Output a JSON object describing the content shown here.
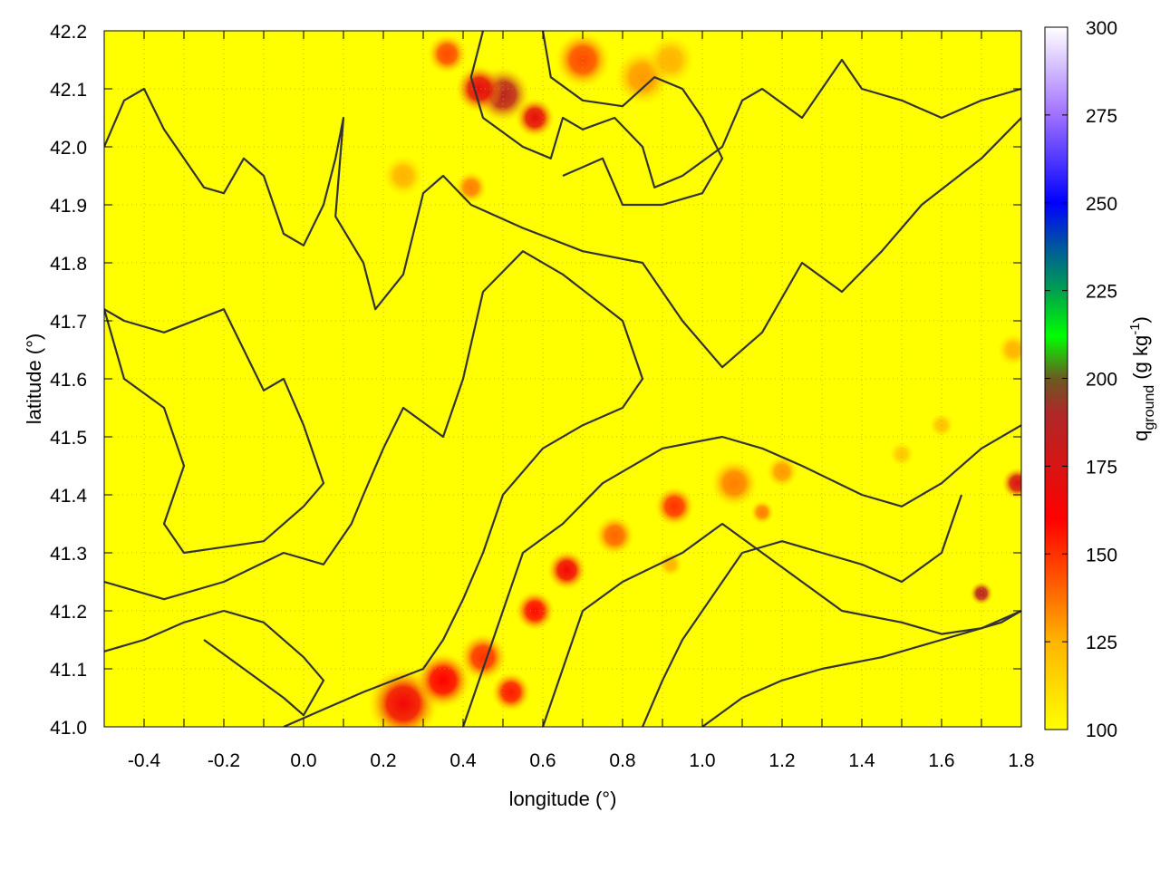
{
  "chart_data": {
    "type": "heatmap",
    "title": "",
    "xlabel": "longitude (°)",
    "ylabel": "latitude (°)",
    "colorbar_label": {
      "base": "q",
      "subscript": "ground",
      "unit_prefix": " (g kg",
      "superscript": "-1",
      "unit_suffix": ")"
    },
    "xlim": [
      -0.5,
      1.8
    ],
    "ylim": [
      41.0,
      42.2
    ],
    "clim": [
      100,
      300
    ],
    "xticks": [
      "-0.4",
      "-0.2",
      "0.0",
      "0.2",
      "0.4",
      "0.6",
      "0.8",
      "1.0",
      "1.2",
      "1.4",
      "1.6",
      "1.8"
    ],
    "xtick_values": [
      -0.4,
      -0.2,
      0.0,
      0.2,
      0.4,
      0.6,
      0.8,
      1.0,
      1.2,
      1.4,
      1.6,
      1.8
    ],
    "yticks": [
      "41.0",
      "41.1",
      "41.2",
      "41.3",
      "41.4",
      "41.5",
      "41.6",
      "41.7",
      "41.8",
      "41.9",
      "42.0",
      "42.1",
      "42.2"
    ],
    "ytick_values": [
      41.0,
      41.1,
      41.2,
      41.3,
      41.4,
      41.5,
      41.6,
      41.7,
      41.8,
      41.9,
      42.0,
      42.1,
      42.2
    ],
    "cbticks": [
      "100",
      "125",
      "150",
      "175",
      "200",
      "225",
      "250",
      "275",
      "300"
    ],
    "cbtick_values": [
      100,
      125,
      150,
      175,
      200,
      225,
      250,
      275,
      300
    ],
    "grid": true,
    "background_value": 100,
    "colormap": [
      {
        "value": 100,
        "color": "#ffff00"
      },
      {
        "value": 125,
        "color": "#ffb400"
      },
      {
        "value": 145,
        "color": "#ff4a00"
      },
      {
        "value": 160,
        "color": "#ff0000"
      },
      {
        "value": 175,
        "color": "#d81414"
      },
      {
        "value": 190,
        "color": "#ae2828"
      },
      {
        "value": 200,
        "color": "#6a5a22"
      },
      {
        "value": 212,
        "color": "#00ff00"
      },
      {
        "value": 225,
        "color": "#00a050"
      },
      {
        "value": 237,
        "color": "#005a9a"
      },
      {
        "value": 250,
        "color": "#0000ff"
      },
      {
        "value": 275,
        "color": "#a070ff"
      },
      {
        "value": 300,
        "color": "#ffffff"
      }
    ],
    "hotspots": [
      {
        "lon": 0.5,
        "lat": 42.09,
        "value": 185,
        "r": 0.07
      },
      {
        "lon": 0.44,
        "lat": 42.1,
        "value": 170,
        "r": 0.06
      },
      {
        "lon": 0.58,
        "lat": 42.05,
        "value": 170,
        "r": 0.05
      },
      {
        "lon": 0.36,
        "lat": 42.16,
        "value": 145,
        "r": 0.05
      },
      {
        "lon": 0.7,
        "lat": 42.15,
        "value": 145,
        "r": 0.07
      },
      {
        "lon": 0.85,
        "lat": 42.12,
        "value": 130,
        "r": 0.07
      },
      {
        "lon": 0.92,
        "lat": 42.15,
        "value": 125,
        "r": 0.06
      },
      {
        "lon": 0.25,
        "lat": 41.95,
        "value": 125,
        "r": 0.05
      },
      {
        "lon": 0.42,
        "lat": 41.93,
        "value": 135,
        "r": 0.04
      },
      {
        "lon": 0.25,
        "lat": 41.04,
        "value": 165,
        "r": 0.09
      },
      {
        "lon": 0.35,
        "lat": 41.08,
        "value": 160,
        "r": 0.07
      },
      {
        "lon": 0.45,
        "lat": 41.12,
        "value": 150,
        "r": 0.06
      },
      {
        "lon": 0.52,
        "lat": 41.06,
        "value": 155,
        "r": 0.05
      },
      {
        "lon": 0.58,
        "lat": 41.2,
        "value": 158,
        "r": 0.05
      },
      {
        "lon": 0.66,
        "lat": 41.27,
        "value": 165,
        "r": 0.05
      },
      {
        "lon": 0.78,
        "lat": 41.33,
        "value": 140,
        "r": 0.05
      },
      {
        "lon": 0.93,
        "lat": 41.38,
        "value": 150,
        "r": 0.05
      },
      {
        "lon": 1.08,
        "lat": 41.42,
        "value": 135,
        "r": 0.06
      },
      {
        "lon": 1.2,
        "lat": 41.44,
        "value": 130,
        "r": 0.04
      },
      {
        "lon": 1.15,
        "lat": 41.37,
        "value": 135,
        "r": 0.03
      },
      {
        "lon": 1.7,
        "lat": 41.23,
        "value": 185,
        "r": 0.03
      },
      {
        "lon": 1.79,
        "lat": 41.42,
        "value": 175,
        "r": 0.04
      },
      {
        "lon": 1.78,
        "lat": 41.65,
        "value": 125,
        "r": 0.04
      },
      {
        "lon": 1.6,
        "lat": 41.52,
        "value": 120,
        "r": 0.03
      },
      {
        "lon": 1.5,
        "lat": 41.47,
        "value": 118,
        "r": 0.03
      },
      {
        "lon": 0.92,
        "lat": 41.28,
        "value": 125,
        "r": 0.03
      }
    ],
    "contours": [
      [
        [
          -0.5,
          42.0
        ],
        [
          -0.45,
          42.08
        ],
        [
          -0.4,
          42.1
        ],
        [
          -0.35,
          42.03
        ],
        [
          -0.3,
          41.98
        ],
        [
          -0.25,
          41.93
        ],
        [
          -0.2,
          41.92
        ],
        [
          -0.15,
          41.98
        ],
        [
          -0.1,
          41.95
        ],
        [
          -0.05,
          41.85
        ],
        [
          0.0,
          41.83
        ],
        [
          0.05,
          41.9
        ],
        [
          0.08,
          41.98
        ],
        [
          0.1,
          42.05
        ],
        [
          0.08,
          41.88
        ],
        [
          0.15,
          41.8
        ],
        [
          0.18,
          41.72
        ],
        [
          0.25,
          41.78
        ],
        [
          0.3,
          41.92
        ],
        [
          0.35,
          41.95
        ],
        [
          0.42,
          41.9
        ],
        [
          0.55,
          41.86
        ],
        [
          0.7,
          41.82
        ],
        [
          0.85,
          41.8
        ],
        [
          0.95,
          41.7
        ],
        [
          1.05,
          41.62
        ],
        [
          1.15,
          41.68
        ],
        [
          1.25,
          41.8
        ],
        [
          1.35,
          41.75
        ],
        [
          1.45,
          41.82
        ],
        [
          1.55,
          41.9
        ],
        [
          1.7,
          41.98
        ],
        [
          1.8,
          42.05
        ]
      ],
      [
        [
          -0.5,
          41.72
        ],
        [
          -0.45,
          41.6
        ],
        [
          -0.35,
          41.55
        ],
        [
          -0.3,
          41.45
        ],
        [
          -0.35,
          41.35
        ],
        [
          -0.3,
          41.3
        ],
        [
          -0.1,
          41.32
        ],
        [
          0.0,
          41.38
        ],
        [
          0.05,
          41.42
        ],
        [
          0.0,
          41.52
        ],
        [
          -0.05,
          41.6
        ],
        [
          -0.1,
          41.58
        ],
        [
          -0.15,
          41.65
        ],
        [
          -0.2,
          41.72
        ],
        [
          -0.35,
          41.68
        ],
        [
          -0.45,
          41.7
        ],
        [
          -0.5,
          41.72
        ]
      ],
      [
        [
          -0.5,
          41.25
        ],
        [
          -0.35,
          41.22
        ],
        [
          -0.2,
          41.25
        ],
        [
          -0.05,
          41.3
        ],
        [
          0.05,
          41.28
        ],
        [
          0.12,
          41.35
        ],
        [
          0.15,
          41.4
        ],
        [
          0.2,
          41.48
        ],
        [
          0.25,
          41.55
        ],
        [
          0.35,
          41.5
        ],
        [
          0.4,
          41.6
        ],
        [
          0.45,
          41.75
        ],
        [
          0.55,
          41.82
        ],
        [
          0.65,
          41.78
        ],
        [
          0.8,
          41.7
        ],
        [
          0.85,
          41.6
        ],
        [
          0.8,
          41.55
        ],
        [
          0.7,
          41.52
        ],
        [
          0.6,
          41.48
        ],
        [
          0.5,
          41.4
        ],
        [
          0.45,
          41.3
        ],
        [
          0.4,
          41.22
        ],
        [
          0.35,
          41.15
        ],
        [
          0.3,
          41.1
        ],
        [
          0.15,
          41.06
        ],
        [
          0.05,
          41.03
        ],
        [
          -0.05,
          41.0
        ]
      ],
      [
        [
          0.4,
          41.0
        ],
        [
          0.45,
          41.1
        ],
        [
          0.5,
          41.2
        ],
        [
          0.55,
          41.3
        ],
        [
          0.65,
          41.35
        ],
        [
          0.75,
          41.42
        ],
        [
          0.9,
          41.48
        ],
        [
          1.05,
          41.5
        ],
        [
          1.15,
          41.48
        ],
        [
          1.25,
          41.45
        ],
        [
          1.4,
          41.4
        ],
        [
          1.5,
          41.38
        ],
        [
          1.6,
          41.42
        ],
        [
          1.7,
          41.48
        ],
        [
          1.8,
          41.52
        ]
      ],
      [
        [
          0.6,
          41.0
        ],
        [
          0.65,
          41.1
        ],
        [
          0.7,
          41.2
        ],
        [
          0.8,
          41.25
        ],
        [
          0.95,
          41.3
        ],
        [
          1.05,
          41.35
        ],
        [
          1.15,
          41.3
        ],
        [
          1.25,
          41.25
        ],
        [
          1.35,
          41.2
        ],
        [
          1.5,
          41.18
        ],
        [
          1.6,
          41.16
        ],
        [
          1.7,
          41.17
        ],
        [
          1.8,
          41.2
        ]
      ],
      [
        [
          0.85,
          41.0
        ],
        [
          0.9,
          41.08
        ],
        [
          0.95,
          41.15
        ],
        [
          1.0,
          41.2
        ],
        [
          1.05,
          41.25
        ],
        [
          1.1,
          41.3
        ],
        [
          1.2,
          41.32
        ],
        [
          1.3,
          41.3
        ],
        [
          1.4,
          41.28
        ],
        [
          1.5,
          41.25
        ],
        [
          1.6,
          41.3
        ],
        [
          1.65,
          41.4
        ]
      ],
      [
        [
          1.0,
          41.0
        ],
        [
          1.1,
          41.05
        ],
        [
          1.2,
          41.08
        ],
        [
          1.3,
          41.1
        ],
        [
          1.45,
          41.12
        ],
        [
          1.6,
          41.15
        ],
        [
          1.75,
          41.18
        ],
        [
          1.8,
          41.2
        ]
      ],
      [
        [
          0.45,
          42.2
        ],
        [
          0.42,
          42.12
        ],
        [
          0.45,
          42.05
        ],
        [
          0.55,
          42.0
        ],
        [
          0.62,
          41.98
        ],
        [
          0.65,
          42.05
        ],
        [
          0.7,
          42.03
        ],
        [
          0.78,
          42.05
        ],
        [
          0.85,
          42.0
        ],
        [
          0.88,
          41.93
        ],
        [
          0.95,
          41.95
        ],
        [
          1.05,
          42.0
        ],
        [
          1.1,
          42.08
        ],
        [
          1.15,
          42.1
        ],
        [
          1.25,
          42.05
        ],
        [
          1.3,
          42.1
        ],
        [
          1.35,
          42.15
        ],
        [
          1.4,
          42.1
        ],
        [
          1.5,
          42.08
        ],
        [
          1.6,
          42.05
        ],
        [
          1.7,
          42.08
        ],
        [
          1.8,
          42.1
        ]
      ],
      [
        [
          0.6,
          42.2
        ],
        [
          0.62,
          42.12
        ],
        [
          0.7,
          42.08
        ],
        [
          0.8,
          42.07
        ],
        [
          0.88,
          42.12
        ],
        [
          0.95,
          42.1
        ],
        [
          1.0,
          42.05
        ],
        [
          1.05,
          41.98
        ],
        [
          1.0,
          41.92
        ],
        [
          0.9,
          41.9
        ],
        [
          0.8,
          41.9
        ],
        [
          0.75,
          41.98
        ],
        [
          0.65,
          41.95
        ]
      ],
      [
        [
          -0.25,
          41.15
        ],
        [
          -0.15,
          41.1
        ],
        [
          -0.05,
          41.05
        ],
        [
          0.0,
          41.02
        ],
        [
          0.05,
          41.08
        ],
        [
          0.0,
          41.12
        ],
        [
          -0.1,
          41.18
        ],
        [
          -0.2,
          41.2
        ],
        [
          -0.3,
          41.18
        ],
        [
          -0.4,
          41.15
        ],
        [
          -0.5,
          41.13
        ]
      ]
    ]
  }
}
